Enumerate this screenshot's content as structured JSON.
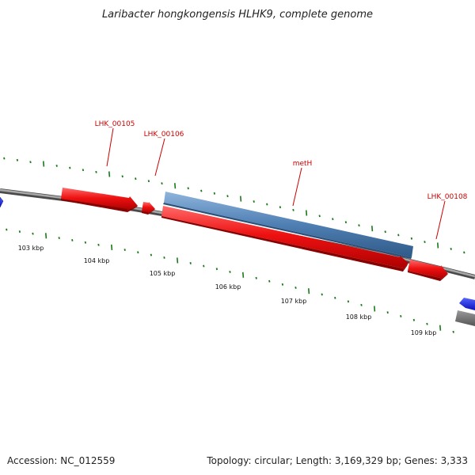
{
  "title": "Laribacter hongkongensis HLHK9, complete genome",
  "footer": {
    "accession": "Accession: NC_012559",
    "stats": "Topology: circular; Length: 3,169,329 bp; Genes: 3,333"
  },
  "colors": {
    "forward_gene": "#ee1111",
    "reverse_gene": "#4f7fb3",
    "edge_blue": "#1122dd",
    "backbone": "#8a8a8a",
    "ticks": "#1a7a1a",
    "gene_label": "#cc0000"
  },
  "tick_labels": [
    "103 kbp",
    "104 kbp",
    "105 kbp",
    "106 kbp",
    "107 kbp",
    "108 kbp",
    "109 kbp"
  ],
  "gene_labels": [
    "LHK_00105",
    "LHK_00106",
    "metH",
    "LHK_00108"
  ]
}
